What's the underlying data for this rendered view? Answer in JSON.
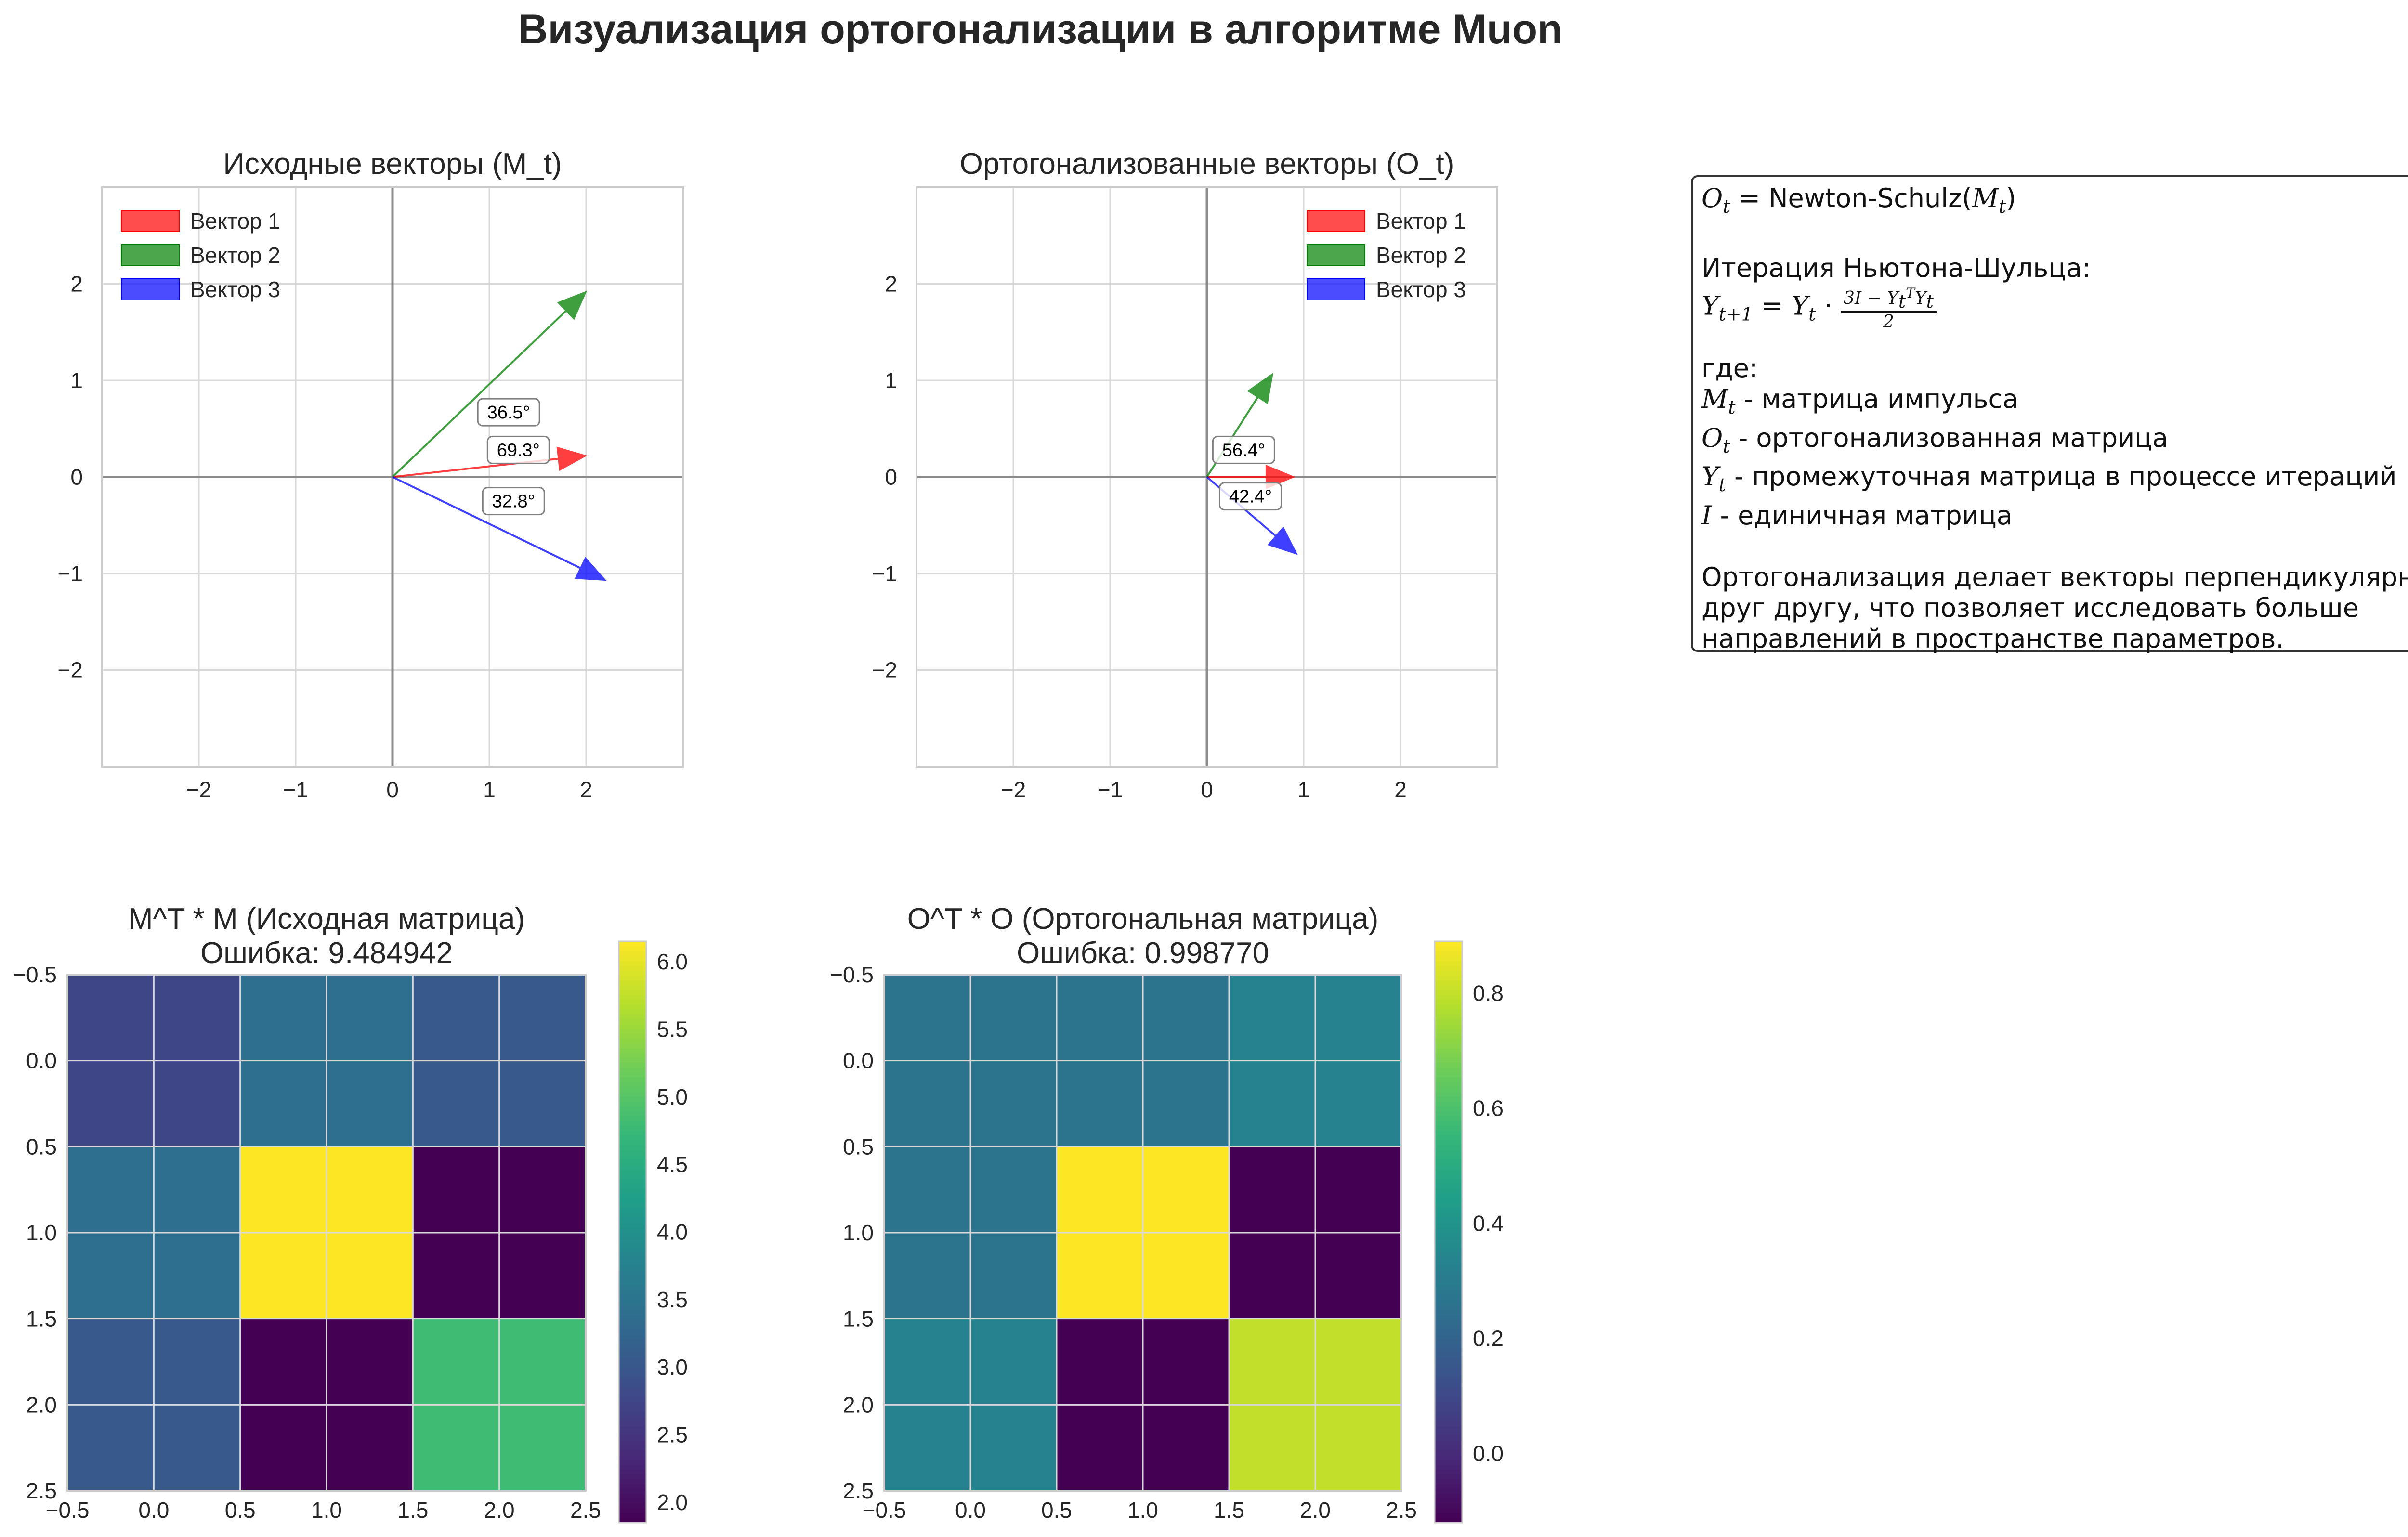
{
  "figure": {
    "title": "Визуализация ортогонализации в алгоритме Muon"
  },
  "colors": {
    "red": "#ff0000",
    "green": "#008000",
    "blue": "#0000ff"
  },
  "chart_data": [
    {
      "type": "quiver",
      "title": "Исходные векторы (M_t)",
      "xlim": [
        -3,
        3
      ],
      "ylim": [
        -3,
        3
      ],
      "xticks": [
        -2,
        -1,
        0,
        1,
        2
      ],
      "yticks": [
        -2,
        -1,
        0,
        1,
        2
      ],
      "grid": true,
      "legend": "upper-left",
      "series": [
        {
          "name": "Вектор 1",
          "color": "red",
          "x": 2,
          "y": 0.22
        },
        {
          "name": "Вектор 2",
          "color": "green",
          "x": 2,
          "y": 1.92
        },
        {
          "name": "Вектор 3",
          "color": "blue",
          "x": 2.2,
          "y": -1.07
        }
      ],
      "angle_labels": [
        {
          "text": "36.5°",
          "x": 1.2,
          "y": 0.67
        },
        {
          "text": "69.3°",
          "x": 1.3,
          "y": 0.28
        },
        {
          "text": "32.8°",
          "x": 1.25,
          "y": -0.25
        }
      ]
    },
    {
      "type": "quiver",
      "title": "Ортогонализованные векторы (O_t)",
      "xlim": [
        -3,
        3
      ],
      "ylim": [
        -3,
        3
      ],
      "xticks": [
        -2,
        -1,
        0,
        1,
        2
      ],
      "yticks": [
        -2,
        -1,
        0,
        1,
        2
      ],
      "grid": true,
      "legend": "upper-right",
      "series": [
        {
          "name": "Вектор 1",
          "color": "red",
          "x": 0.9,
          "y": 0
        },
        {
          "name": "Вектор 2",
          "color": "green",
          "x": 0.68,
          "y": 1.07
        },
        {
          "name": "Вектор 3",
          "color": "blue",
          "x": 0.93,
          "y": -0.8
        }
      ],
      "angle_labels": [
        {
          "text": "56.4°",
          "x": 0.38,
          "y": 0.28
        },
        {
          "text": "42.4°",
          "x": 0.45,
          "y": -0.2
        }
      ]
    },
    {
      "type": "heatmap",
      "title": "M^T * M (Исходная матрица)",
      "subtitle": "Ошибка: 9.484942",
      "colormap": "viridis",
      "xlim": [
        -0.5,
        2.5
      ],
      "ylim": [
        2.5,
        -0.5
      ],
      "xticks": [
        "−0.5",
        "0.0",
        "0.5",
        "1.0",
        "1.5",
        "2.0",
        "2.5"
      ],
      "yticks": [
        "−0.5",
        "0.0",
        "0.5",
        "1.0",
        "1.5",
        "2.0",
        "2.5"
      ],
      "colorbar": {
        "min": 1.85,
        "max": 6.15,
        "ticks": [
          "2.0",
          "2.5",
          "3.0",
          "3.5",
          "4.0",
          "4.5",
          "5.0",
          "5.5",
          "6.0"
        ]
      },
      "values": [
        [
          2.75,
          2.75,
          3.4,
          3.4,
          3.05,
          3.05
        ],
        [
          2.75,
          2.75,
          3.4,
          3.4,
          3.05,
          3.05
        ],
        [
          3.4,
          3.4,
          6.15,
          6.15,
          1.85,
          1.85
        ],
        [
          3.4,
          3.4,
          6.15,
          6.15,
          1.85,
          1.85
        ],
        [
          3.05,
          3.05,
          1.85,
          1.85,
          4.8,
          4.8
        ],
        [
          3.05,
          3.05,
          1.85,
          1.85,
          4.8,
          4.8
        ]
      ]
    },
    {
      "type": "heatmap",
      "title": "O^T * O (Ортогональная матрица)",
      "subtitle": "Ошибка: 0.998770",
      "colormap": "viridis",
      "xlim": [
        -0.5,
        2.5
      ],
      "ylim": [
        2.5,
        -0.5
      ],
      "xticks": [
        "−0.5",
        "0.0",
        "0.5",
        "1.0",
        "1.5",
        "2.0",
        "2.5"
      ],
      "yticks": [
        "−0.5",
        "0.0",
        "0.5",
        "1.0",
        "1.5",
        "2.0",
        "2.5"
      ],
      "colorbar": {
        "min": -0.12,
        "max": 0.89,
        "ticks": [
          "0.0",
          "0.2",
          "0.4",
          "0.6",
          "0.8"
        ]
      },
      "values": [
        [
          0.27,
          0.27,
          0.27,
          0.27,
          0.33,
          0.33
        ],
        [
          0.27,
          0.27,
          0.27,
          0.27,
          0.33,
          0.33
        ],
        [
          0.27,
          0.27,
          0.89,
          0.89,
          -0.12,
          -0.12
        ],
        [
          0.27,
          0.27,
          0.89,
          0.89,
          -0.12,
          -0.12
        ],
        [
          0.33,
          0.33,
          -0.12,
          -0.12,
          0.8,
          0.8
        ],
        [
          0.33,
          0.33,
          -0.12,
          -0.12,
          0.8,
          0.8
        ]
      ]
    }
  ],
  "formula_box": {
    "eq_rhs": "Newton-Schulz",
    "iteration_label": "Итерация Ньютона-Шульца:",
    "where": "где:",
    "m_desc": " - матрица импульса",
    "o_desc": " - ортогонализованная матрица",
    "y_desc": " - промежуточная матрица в процессе итераций",
    "i_desc": " - единичная матрица",
    "note_1": "Ортогонализация делает векторы перпендикулярными",
    "note_2": "друг другу, что позволяет исследовать больше",
    "note_3": "направлений в пространстве параметров."
  }
}
